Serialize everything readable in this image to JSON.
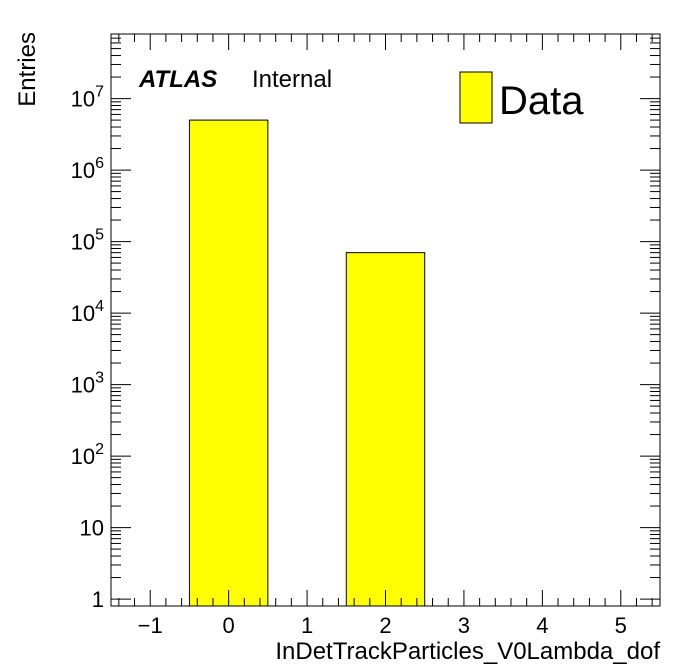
{
  "chart_data": {
    "type": "bar",
    "xlabel": "InDetTrackParticles_V0Lambda_dof",
    "ylabel": "Entries",
    "xlim": [
      -1.5,
      5.5
    ],
    "ylim": [
      0.8,
      80000000
    ],
    "yscale": "log",
    "x_ticks": [
      "−1",
      "0",
      "1",
      "2",
      "3",
      "4",
      "5"
    ],
    "y_ticks": [
      {
        "base": "1",
        "exp": ""
      },
      {
        "base": "10",
        "exp": ""
      },
      {
        "base": "10",
        "exp": "2"
      },
      {
        "base": "10",
        "exp": "3"
      },
      {
        "base": "10",
        "exp": "4"
      },
      {
        "base": "10",
        "exp": "5"
      },
      {
        "base": "10",
        "exp": "6"
      },
      {
        "base": "10",
        "exp": "7"
      }
    ],
    "bins": [
      {
        "x_low": -0.5,
        "x_high": 0.5,
        "value": 5000000
      },
      {
        "x_low": 1.5,
        "x_high": 2.5,
        "value": 70000
      }
    ],
    "fill_color": "#ffff00",
    "legend": {
      "entries": [
        "Data"
      ],
      "placement": "top-right"
    },
    "annotation": {
      "atlas": "ATLAS",
      "status": "Internal"
    },
    "grid": false
  }
}
